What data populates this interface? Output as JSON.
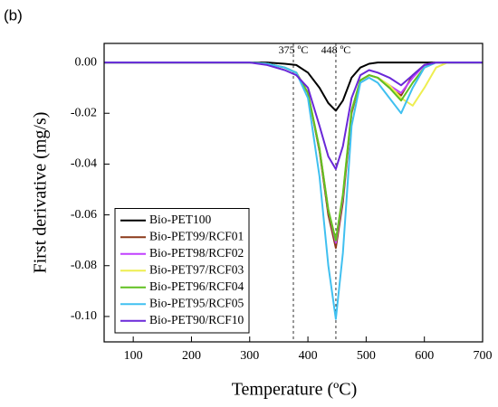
{
  "chart_data": {
    "type": "line",
    "panel_label": "(b)",
    "xlabel": "Temperature (ºC)",
    "ylabel": "First derivative (mg/s)",
    "x": [
      50,
      100,
      150,
      200,
      250,
      300,
      330,
      360,
      380,
      400,
      420,
      435,
      448,
      460,
      475,
      490,
      505,
      520,
      540,
      560,
      580,
      600,
      620,
      640,
      700
    ],
    "series": [
      {
        "name": "Bio-PET100",
        "color": "#000000",
        "values": [
          0,
          0,
          0,
          0,
          0,
          0,
          0,
          -0.0005,
          -0.001,
          -0.004,
          -0.01,
          -0.016,
          -0.019,
          -0.015,
          -0.006,
          -0.002,
          -0.0005,
          0,
          0,
          0,
          0,
          0,
          0,
          0,
          0
        ]
      },
      {
        "name": "Bio-PET99/RCF01",
        "color": "#8b3a1a",
        "values": [
          0,
          0,
          0,
          0,
          0,
          0,
          -0.0005,
          -0.002,
          -0.004,
          -0.012,
          -0.035,
          -0.06,
          -0.073,
          -0.055,
          -0.02,
          -0.007,
          -0.005,
          -0.006,
          -0.01,
          -0.013,
          -0.005,
          -0.001,
          0,
          0,
          0
        ]
      },
      {
        "name": "Bio-PET98/RCF02",
        "color": "#c040ff",
        "values": [
          0,
          0,
          0,
          0,
          0,
          0,
          -0.0005,
          -0.002,
          -0.004,
          -0.012,
          -0.034,
          -0.058,
          -0.071,
          -0.053,
          -0.019,
          -0.007,
          -0.005,
          -0.006,
          -0.009,
          -0.012,
          -0.006,
          -0.001,
          0,
          0,
          0
        ]
      },
      {
        "name": "Bio-PET97/RCF03",
        "color": "#eeee50",
        "values": [
          0,
          0,
          0,
          0,
          0,
          0,
          -0.0005,
          -0.002,
          -0.004,
          -0.012,
          -0.034,
          -0.058,
          -0.07,
          -0.052,
          -0.019,
          -0.007,
          -0.005,
          -0.006,
          -0.009,
          -0.014,
          -0.017,
          -0.01,
          -0.002,
          0,
          0
        ]
      },
      {
        "name": "Bio-PET96/RCF04",
        "color": "#60c020",
        "values": [
          0,
          0,
          0,
          0,
          0,
          0,
          -0.0005,
          -0.002,
          -0.004,
          -0.012,
          -0.034,
          -0.058,
          -0.07,
          -0.052,
          -0.019,
          -0.007,
          -0.005,
          -0.006,
          -0.01,
          -0.015,
          -0.008,
          -0.002,
          0,
          0,
          0
        ]
      },
      {
        "name": "Bio-PET95/RCF05",
        "color": "#40c0f0",
        "values": [
          0,
          0,
          0,
          0,
          0,
          0,
          -0.0005,
          -0.002,
          -0.004,
          -0.014,
          -0.045,
          -0.08,
          -0.101,
          -0.075,
          -0.025,
          -0.008,
          -0.006,
          -0.008,
          -0.014,
          -0.02,
          -0.01,
          -0.002,
          0,
          0,
          0
        ]
      },
      {
        "name": "Bio-PET90/RCF10",
        "color": "#6a28d8",
        "values": [
          0,
          0,
          0,
          0,
          0,
          0,
          -0.001,
          -0.003,
          -0.005,
          -0.01,
          -0.025,
          -0.037,
          -0.042,
          -0.033,
          -0.014,
          -0.005,
          -0.003,
          -0.004,
          -0.006,
          -0.009,
          -0.005,
          -0.001,
          0,
          0,
          0
        ]
      }
    ],
    "xlim": [
      50,
      700
    ],
    "xticks": [
      100,
      200,
      300,
      400,
      500,
      600,
      700
    ],
    "ylim": [
      -0.11,
      0.0075
    ],
    "yticks": [
      {
        "value": 0,
        "label": "0.00"
      },
      -0.02,
      -0.04,
      -0.06,
      -0.08,
      {
        "value": -0.1,
        "label": "-0.10"
      }
    ],
    "annotations": [
      {
        "text": "375 ºC",
        "x": 375
      },
      {
        "text": "448 ºC",
        "x": 448
      }
    ],
    "legend": "lower left"
  }
}
